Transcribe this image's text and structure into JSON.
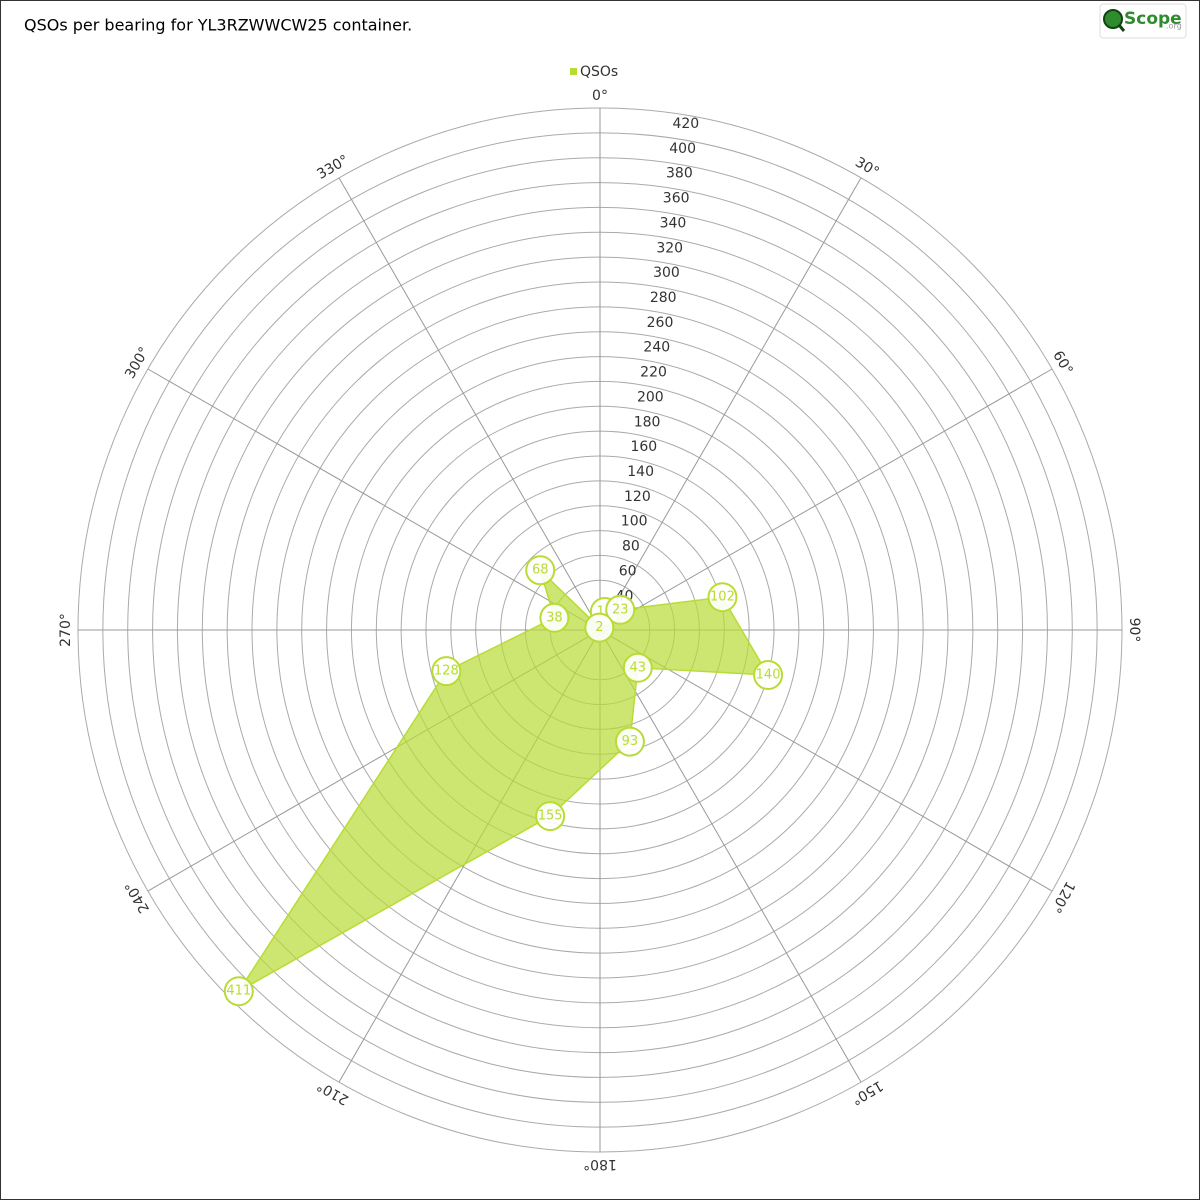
{
  "chart_data": {
    "type": "polar-area",
    "title": "QSOs per bearing for YL3RZWWCW25 container.",
    "logo": {
      "text": "Scope",
      "suffix": ".org"
    },
    "x": [
      15,
      45,
      75,
      105,
      135,
      165,
      195,
      225,
      255,
      285,
      315,
      345
    ],
    "xticks": [
      {
        "value": 0,
        "label": "0°"
      },
      {
        "value": 30,
        "label": "30°"
      },
      {
        "value": 60,
        "label": "60°"
      },
      {
        "value": 90,
        "label": "90°"
      },
      {
        "value": 120,
        "label": "120°"
      },
      {
        "value": 150,
        "label": "150°"
      },
      {
        "value": 180,
        "label": "180°"
      },
      {
        "value": 210,
        "label": "210°"
      },
      {
        "value": 240,
        "label": "240°"
      },
      {
        "value": 270,
        "label": "270°"
      },
      {
        "value": 300,
        "label": "300°"
      },
      {
        "value": 330,
        "label": "330°"
      }
    ],
    "series": [
      {
        "name": "QSOs",
        "color": "#b8dc34",
        "values": [
          15,
          23,
          102,
          140,
          43,
          93,
          155,
          411,
          128,
          38,
          68,
          2
        ]
      }
    ],
    "ylim": [
      0,
      420
    ],
    "yticks": [
      40,
      60,
      80,
      100,
      120,
      140,
      160,
      180,
      200,
      220,
      240,
      260,
      280,
      300,
      320,
      340,
      360,
      380,
      400,
      420
    ]
  }
}
